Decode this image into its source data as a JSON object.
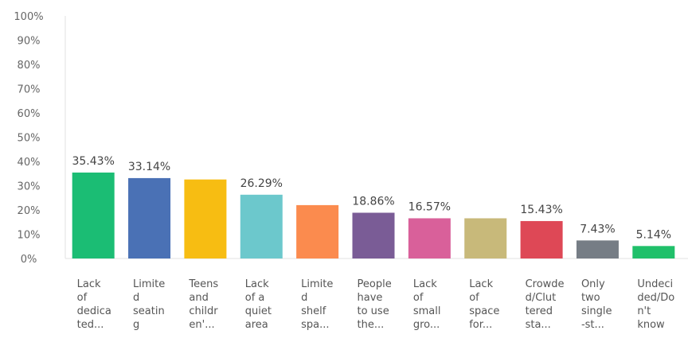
{
  "chart_data": {
    "type": "bar",
    "categories": [
      [
        "Lack",
        "of",
        "dedica",
        "ted..."
      ],
      [
        "Limite",
        "d",
        "seatin",
        "g"
      ],
      [
        "Teens",
        "and",
        "childr",
        "en'..."
      ],
      [
        "Lack",
        "of a",
        "quiet",
        "area"
      ],
      [
        "Limite",
        "d",
        "shelf",
        "spa..."
      ],
      [
        "People",
        "have",
        "to use",
        "the..."
      ],
      [
        "Lack",
        "of",
        "small",
        "gro..."
      ],
      [
        "Lack",
        "of",
        "space",
        "for..."
      ],
      [
        "Crowde",
        "d/Clut",
        "tered",
        "sta..."
      ],
      [
        "Only",
        "two",
        "single",
        "-st..."
      ],
      [
        "Undeci",
        "ded/Do",
        "n't",
        "know"
      ]
    ],
    "values": [
      35.43,
      33.14,
      32.57,
      26.29,
      22.0,
      18.86,
      16.57,
      16.57,
      15.43,
      7.43,
      5.14
    ],
    "data_labels": [
      "35.43%",
      "33.14%",
      "",
      "26.29%",
      "",
      "18.86%",
      "16.57%",
      "",
      "15.43%",
      "7.43%",
      "5.14%"
    ],
    "colors": [
      "#1bbd74",
      "#4a71b5",
      "#f7bd12",
      "#6cc8cc",
      "#fb8b4e",
      "#7a5c96",
      "#d9609a",
      "#c8b97a",
      "#de4856",
      "#767d85",
      "#20c06a"
    ],
    "ylim": [
      0,
      100
    ],
    "yticks": [
      0,
      10,
      20,
      30,
      40,
      50,
      60,
      70,
      80,
      90,
      100
    ],
    "ytick_labels": [
      "0%",
      "10%",
      "20%",
      "30%",
      "40%",
      "50%",
      "60%",
      "70%",
      "80%",
      "90%",
      "100%"
    ],
    "grid": false,
    "legend": "none",
    "title": "",
    "xlabel": "",
    "ylabel": ""
  }
}
